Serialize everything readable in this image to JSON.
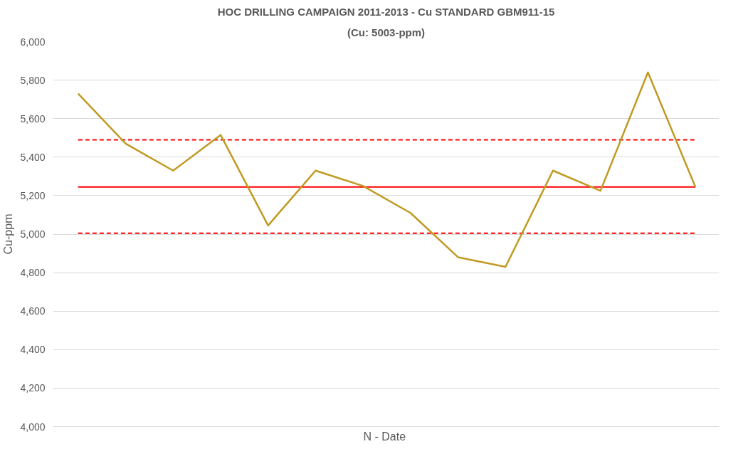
{
  "chart_data": {
    "type": "line",
    "title": "HOC DRILLING CAMPAIGN 2011-2013 - Cu STANDARD GBM911-15",
    "subtitle": "(Cu: 5003-ppm)",
    "xlabel": "N -  Date",
    "ylabel": "Cu-ppm",
    "categories": [
      null,
      null,
      null,
      null,
      null,
      null,
      null,
      null,
      null,
      null,
      null,
      null,
      null,
      null
    ],
    "series": [
      {
        "color": "#c09a22",
        "values": [
          5730,
          5470,
          5330,
          5515,
          5045,
          5330,
          5250,
          5110,
          4880,
          4830,
          5330,
          5225,
          5840,
          5245
        ]
      }
    ],
    "ref_lines": [
      {
        "axis": "y",
        "value": 5490,
        "color": "#ff0000",
        "line_style": "dashed"
      },
      {
        "axis": "y",
        "value": 5245,
        "color": "#ff0000",
        "line_style": "solid"
      },
      {
        "axis": "y",
        "value": 5005,
        "color": "#ff0000",
        "line_style": "dashed"
      }
    ],
    "ylim": [
      4000,
      6000
    ],
    "yticks": [
      {
        "value": 4000,
        "label": "4,000"
      },
      {
        "value": 4200,
        "label": "4,200"
      },
      {
        "value": 4400,
        "label": "4,400"
      },
      {
        "value": 4600,
        "label": "4,600"
      },
      {
        "value": 4800,
        "label": "4,800"
      },
      {
        "value": 5000,
        "label": "5,000"
      },
      {
        "value": 5200,
        "label": "5,200"
      },
      {
        "value": 5400,
        "label": "5,400"
      },
      {
        "value": 5600,
        "label": "5,600"
      },
      {
        "value": 5800,
        "label": "5,800"
      },
      {
        "value": 6000,
        "label": "6,000"
      }
    ],
    "grid": "y",
    "marker": "none",
    "line_style": "solid"
  }
}
